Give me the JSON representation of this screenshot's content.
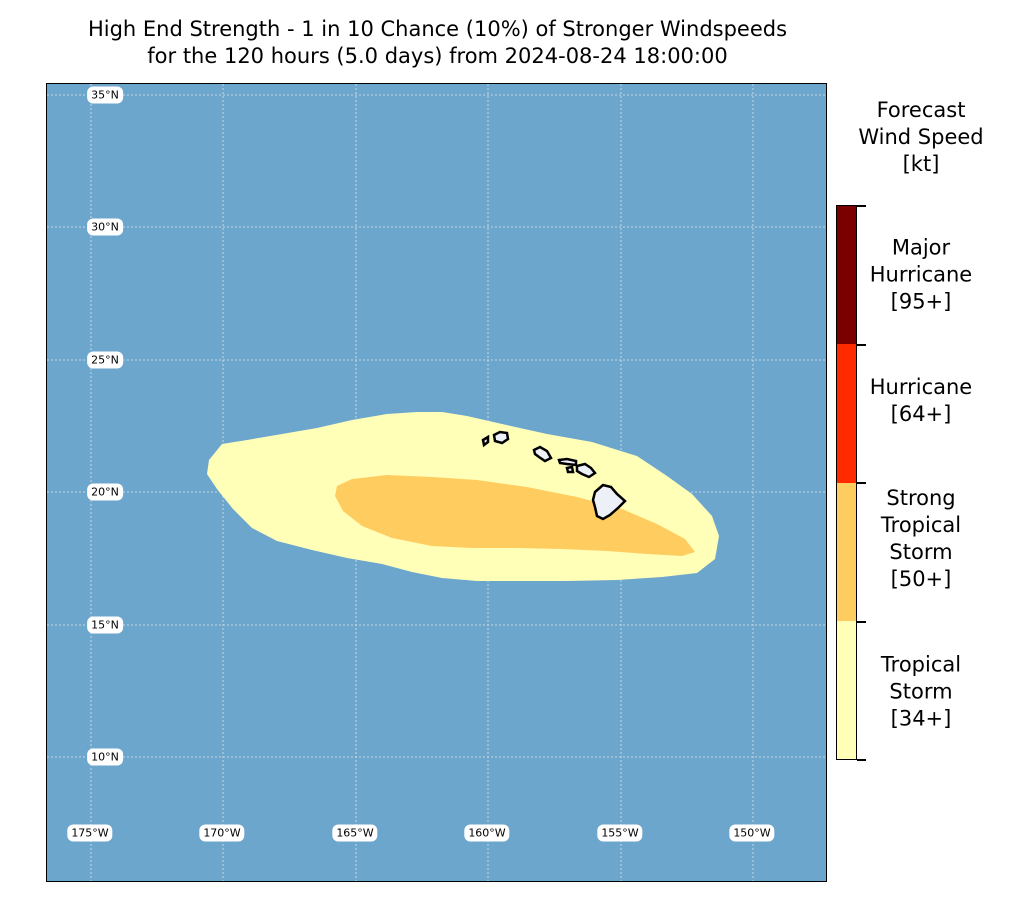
{
  "title": {
    "line1": "High End Strength - 1 in 10 Chance (10%) of Stronger Windspeeds",
    "line2": "for the 120 hours (5.0 days) from 2024-08-24 18:00:00"
  },
  "map": {
    "ocean_color": "#6ca6cd",
    "land_color": "#eef0f8",
    "lat_labels": [
      "35°N",
      "30°N",
      "25°N",
      "20°N",
      "15°N",
      "10°N"
    ],
    "lon_labels": [
      "175°W",
      "170°W",
      "165°W",
      "160°W",
      "155°W",
      "150°W"
    ]
  },
  "colorbar": {
    "title_line1": "Forecast",
    "title_line2": "Wind Speed",
    "title_line3": "[kt]",
    "categories": [
      {
        "lines": [
          "Major",
          "Hurricane",
          "[95+]"
        ],
        "color": "#7a0000"
      },
      {
        "lines": [
          "Hurricane",
          "[64+]"
        ],
        "color": "#ff2a00"
      },
      {
        "lines": [
          "Strong",
          "Tropical",
          "Storm",
          "[50+]"
        ],
        "color": "#ffcc60"
      },
      {
        "lines": [
          "Tropical",
          "Storm",
          "[34+]"
        ],
        "color": "#ffffb8"
      }
    ]
  }
}
